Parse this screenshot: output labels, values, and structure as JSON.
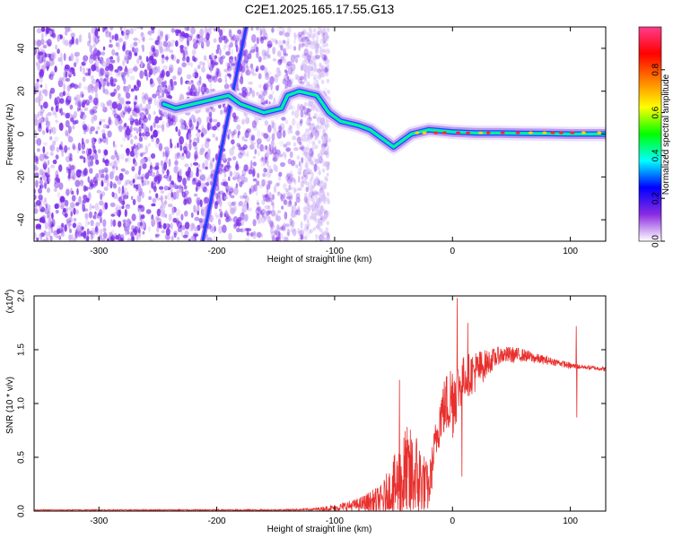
{
  "title": "C2E1.2025.165.17.55.G13",
  "chart_data": [
    {
      "type": "heatmap",
      "xlabel": "Height of straight line (km)",
      "ylabel": "Frequency (Hz)",
      "xlim": [
        -355,
        130
      ],
      "ylim": [
        -50,
        50
      ],
      "xticks": [
        -300,
        -200,
        -100,
        0,
        100
      ],
      "yticks": [
        -40,
        -20,
        0,
        20,
        40
      ],
      "colorbar": {
        "label": "Normalized spectral amplitude",
        "range": [
          0,
          1
        ],
        "ticks": [
          0.0,
          0.2,
          0.4,
          0.6,
          0.8
        ],
        "colors": [
          "#ffffff",
          "#8a2be2",
          "#0000ff",
          "#00ffff",
          "#00ff00",
          "#ffff00",
          "#ff8000",
          "#ff0000",
          "#ff3c8c"
        ]
      },
      "features": {
        "noise_region_x": [
          -355,
          -105
        ],
        "noise_color": "#7a2be8",
        "diagonal_streak": {
          "from": [
            -212,
            -50
          ],
          "to": [
            -175,
            50
          ],
          "color": "#1e40ff"
        },
        "ridge_path": [
          [
            -245,
            14
          ],
          [
            -235,
            12
          ],
          [
            -190,
            18
          ],
          [
            -180,
            14
          ],
          [
            -160,
            10
          ],
          [
            -145,
            12
          ],
          [
            -140,
            18
          ],
          [
            -130,
            20
          ],
          [
            -115,
            18
          ],
          [
            -105,
            10
          ],
          [
            -95,
            6
          ],
          [
            -80,
            4
          ],
          [
            -70,
            2
          ],
          [
            -60,
            -2
          ],
          [
            -50,
            -6
          ],
          [
            -45,
            -4
          ],
          [
            -35,
            0
          ],
          [
            -20,
            2
          ],
          [
            0,
            1
          ],
          [
            20,
            0.5
          ],
          [
            40,
            0.5
          ],
          [
            60,
            0.3
          ],
          [
            80,
            0.2
          ],
          [
            100,
            0
          ],
          [
            130,
            0
          ]
        ]
      }
    },
    {
      "type": "line",
      "xlabel": "Height of straight line (km)",
      "ylabel": "SNR (10 * v/v)",
      "y_scale_label": "(x10",
      "y_scale_exponent": "4",
      "y_scale_suffix": ")",
      "xlim": [
        -355,
        130
      ],
      "ylim": [
        0,
        2.0
      ],
      "xticks": [
        -300,
        -200,
        -100,
        0,
        100
      ],
      "yticks": [
        0.0,
        0.5,
        1.0,
        1.5,
        2.0
      ],
      "color": "#e8302e",
      "envelope": {
        "x": [
          -355,
          -150,
          -120,
          -100,
          -80,
          -60,
          -50,
          -40,
          -30,
          -20,
          -15,
          -10,
          -5,
          0,
          5,
          10,
          20,
          30,
          40,
          50,
          60,
          70,
          80,
          90,
          100,
          110,
          120,
          130
        ],
        "base": [
          0.01,
          0.01,
          0.015,
          0.03,
          0.06,
          0.1,
          0.2,
          0.3,
          0.3,
          0.2,
          0.6,
          0.9,
          1.0,
          1.05,
          1.15,
          1.25,
          1.3,
          1.38,
          1.45,
          1.45,
          1.45,
          1.42,
          1.4,
          1.38,
          1.35,
          1.34,
          1.33,
          1.32
        ],
        "amp": [
          0.004,
          0.006,
          0.01,
          0.03,
          0.06,
          0.15,
          0.3,
          0.5,
          0.45,
          0.2,
          0.2,
          0.25,
          0.3,
          0.4,
          0.25,
          0.2,
          0.2,
          0.12,
          0.08,
          0.08,
          0.06,
          0.05,
          0.04,
          0.03,
          0.03,
          0.02,
          0.02,
          0.02
        ]
      },
      "spikes": [
        {
          "x": -45,
          "y": 1.22
        },
        {
          "x": 4,
          "y": 1.98
        },
        {
          "x": 8,
          "y": 0.32
        },
        {
          "x": 13,
          "y": 1.75
        },
        {
          "x": 105,
          "y": 1.72
        },
        {
          "x": 105.5,
          "y": 0.87
        }
      ]
    }
  ]
}
